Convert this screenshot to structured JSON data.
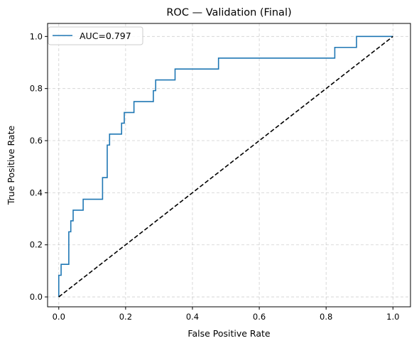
{
  "chart_data": {
    "type": "line",
    "title": "ROC — Validation (Final)",
    "xlabel": "False Positive Rate",
    "ylabel": "True Positive Rate",
    "xlim": [
      -0.0335,
      1.0525
    ],
    "ylim": [
      -0.038,
      1.05
    ],
    "xticks": [
      0.0,
      0.2,
      0.4,
      0.6,
      0.8,
      1.0
    ],
    "yticks": [
      0.0,
      0.2,
      0.4,
      0.6,
      0.8,
      1.0
    ],
    "grid": true,
    "legend_position": "upper-left",
    "series": [
      {
        "name": "AUC=0.797",
        "color": "#1f77b4",
        "style": "step",
        "x": [
          0.0,
          0.0,
          0.007,
          0.007,
          0.03,
          0.03,
          0.036,
          0.036,
          0.043,
          0.043,
          0.051,
          0.051,
          0.073,
          0.073,
          0.131,
          0.131,
          0.145,
          0.145,
          0.152,
          0.152,
          0.188,
          0.188,
          0.196,
          0.196,
          0.225,
          0.225,
          0.283,
          0.283,
          0.29,
          0.29,
          0.348,
          0.348,
          0.478,
          0.478,
          0.826,
          0.826,
          0.891,
          0.891,
          1.0
        ],
        "y": [
          0.0,
          0.083,
          0.083,
          0.125,
          0.125,
          0.25,
          0.25,
          0.292,
          0.292,
          0.333,
          0.333,
          0.333,
          0.333,
          0.375,
          0.375,
          0.458,
          0.458,
          0.583,
          0.583,
          0.625,
          0.625,
          0.667,
          0.667,
          0.708,
          0.708,
          0.75,
          0.75,
          0.792,
          0.792,
          0.833,
          0.833,
          0.875,
          0.875,
          0.917,
          0.917,
          0.958,
          0.958,
          1.0,
          1.0
        ]
      },
      {
        "name": "",
        "color": "#000000",
        "style": "dashed",
        "x": [
          0.0,
          1.0
        ],
        "y": [
          0.0,
          1.0
        ]
      }
    ]
  }
}
